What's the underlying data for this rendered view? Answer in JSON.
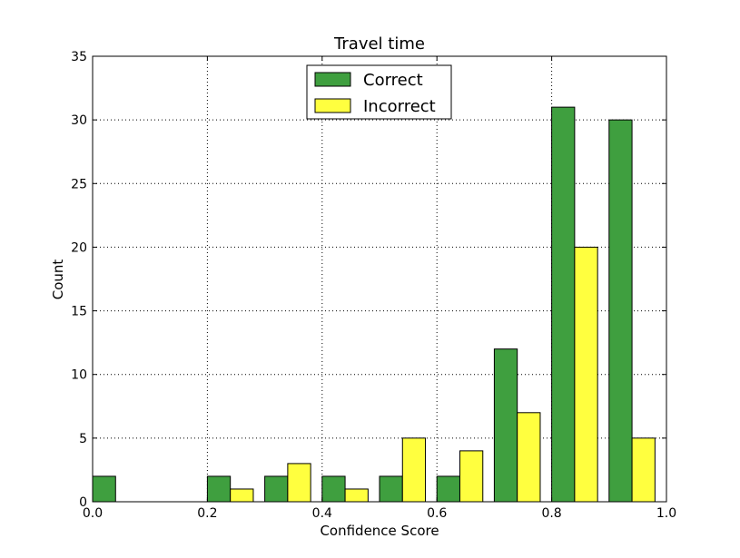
{
  "chart_data": {
    "type": "bar",
    "title": "Travel time",
    "xlabel": "Confidence Score",
    "ylabel": "Count",
    "xlim": [
      0.0,
      1.0
    ],
    "ylim": [
      0,
      35
    ],
    "bin_edges": [
      0.0,
      0.1,
      0.2,
      0.3,
      0.4,
      0.5,
      0.6,
      0.7,
      0.8,
      0.9,
      1.0
    ],
    "x_ticks": [
      "0.0",
      "0.2",
      "0.4",
      "0.6",
      "0.8",
      "1.0"
    ],
    "y_ticks": [
      "0",
      "5",
      "10",
      "15",
      "20",
      "25",
      "30",
      "35"
    ],
    "grid": true,
    "legend_position": "top-center",
    "series": [
      {
        "name": "Correct",
        "color": "#3f9f3f",
        "values": [
          2,
          0,
          2,
          2,
          2,
          2,
          2,
          12,
          31,
          30
        ]
      },
      {
        "name": "Incorrect",
        "color": "#ffff3f",
        "values": [
          0,
          0,
          1,
          3,
          1,
          5,
          4,
          7,
          20,
          5
        ]
      }
    ]
  }
}
